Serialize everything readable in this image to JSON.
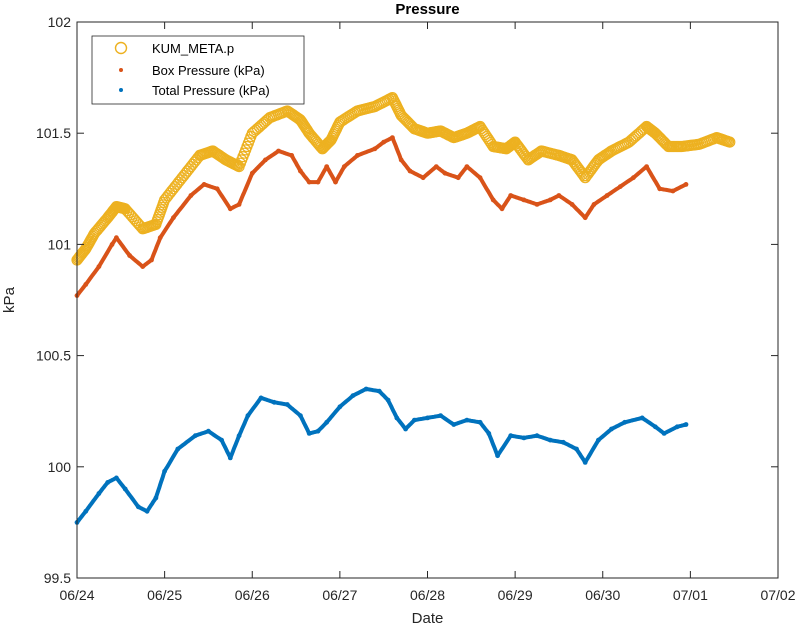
{
  "chart_data": {
    "type": "line",
    "title": "Pressure",
    "xlabel": "Date",
    "ylabel": "kPa",
    "x_tick_labels": [
      "06/24",
      "06/25",
      "06/26",
      "06/27",
      "06/28",
      "06/29",
      "06/30",
      "07/01",
      "07/02"
    ],
    "x_range_days": [
      0,
      8
    ],
    "ylim": [
      99.5,
      102
    ],
    "y_ticks": [
      99.5,
      100,
      100.5,
      101,
      101.5,
      102
    ],
    "y_tick_labels": [
      "99.5",
      "100",
      "100.5",
      "101",
      "101.5",
      "102"
    ],
    "legend_position": "top-left",
    "series": [
      {
        "name": "KUM_META.p",
        "marker": "circle",
        "color": "#EDB120",
        "x_days": [
          0.0,
          0.1,
          0.2,
          0.35,
          0.45,
          0.55,
          0.75,
          0.9,
          1.0,
          1.2,
          1.4,
          1.55,
          1.7,
          1.85,
          2.0,
          2.2,
          2.4,
          2.55,
          2.65,
          2.8,
          2.9,
          3.0,
          3.2,
          3.4,
          3.6,
          3.7,
          3.85,
          4.0,
          4.15,
          4.3,
          4.45,
          4.6,
          4.75,
          4.9,
          5.0,
          5.15,
          5.3,
          5.5,
          5.65,
          5.8,
          5.95,
          6.1,
          6.3,
          6.5,
          6.6,
          6.75,
          6.9,
          7.1,
          7.3,
          7.45
        ],
        "values": [
          100.93,
          100.98,
          101.05,
          101.12,
          101.17,
          101.16,
          101.07,
          101.09,
          101.2,
          101.3,
          101.4,
          101.42,
          101.38,
          101.35,
          101.5,
          101.57,
          101.6,
          101.56,
          101.5,
          101.43,
          101.47,
          101.55,
          101.6,
          101.62,
          101.66,
          101.58,
          101.52,
          101.5,
          101.51,
          101.48,
          101.5,
          101.53,
          101.44,
          101.43,
          101.46,
          101.38,
          101.42,
          101.4,
          101.38,
          101.3,
          101.38,
          101.42,
          101.46,
          101.53,
          101.5,
          101.44,
          101.44,
          101.45,
          101.48,
          101.46
        ]
      },
      {
        "name": "Box Pressure (kPa)",
        "marker": "dot",
        "color": "#D95319",
        "x_days": [
          0.0,
          0.1,
          0.25,
          0.4,
          0.45,
          0.6,
          0.75,
          0.85,
          0.95,
          1.1,
          1.3,
          1.45,
          1.6,
          1.75,
          1.85,
          2.0,
          2.15,
          2.3,
          2.45,
          2.55,
          2.65,
          2.75,
          2.85,
          2.95,
          3.05,
          3.2,
          3.4,
          3.5,
          3.6,
          3.7,
          3.8,
          3.95,
          4.1,
          4.2,
          4.35,
          4.45,
          4.6,
          4.75,
          4.85,
          4.95,
          5.1,
          5.25,
          5.4,
          5.5,
          5.65,
          5.8,
          5.9,
          6.05,
          6.2,
          6.35,
          6.5,
          6.65,
          6.8,
          6.95
        ],
        "values": [
          100.77,
          100.82,
          100.9,
          101.0,
          101.03,
          100.95,
          100.9,
          100.93,
          101.03,
          101.12,
          101.22,
          101.27,
          101.25,
          101.16,
          101.18,
          101.32,
          101.38,
          101.42,
          101.4,
          101.33,
          101.28,
          101.28,
          101.35,
          101.28,
          101.35,
          101.4,
          101.43,
          101.46,
          101.48,
          101.38,
          101.33,
          101.3,
          101.35,
          101.32,
          101.3,
          101.35,
          101.3,
          101.2,
          101.16,
          101.22,
          101.2,
          101.18,
          101.2,
          101.22,
          101.18,
          101.12,
          101.18,
          101.22,
          101.26,
          101.3,
          101.35,
          101.25,
          101.24,
          101.27
        ]
      },
      {
        "name": "Total Pressure (kPa)",
        "marker": "dot",
        "color": "#0072BD",
        "x_days": [
          0.0,
          0.1,
          0.25,
          0.35,
          0.45,
          0.55,
          0.7,
          0.8,
          0.9,
          1.0,
          1.15,
          1.35,
          1.5,
          1.65,
          1.75,
          1.85,
          1.95,
          2.1,
          2.25,
          2.4,
          2.55,
          2.65,
          2.75,
          2.85,
          3.0,
          3.15,
          3.3,
          3.45,
          3.55,
          3.65,
          3.75,
          3.85,
          4.0,
          4.15,
          4.3,
          4.45,
          4.6,
          4.7,
          4.8,
          4.95,
          5.1,
          5.25,
          5.4,
          5.55,
          5.7,
          5.8,
          5.95,
          6.1,
          6.25,
          6.45,
          6.6,
          6.7,
          6.85,
          6.95
        ],
        "values": [
          99.75,
          99.8,
          99.88,
          99.93,
          99.95,
          99.9,
          99.82,
          99.8,
          99.86,
          99.98,
          100.08,
          100.14,
          100.16,
          100.12,
          100.04,
          100.14,
          100.23,
          100.31,
          100.29,
          100.28,
          100.23,
          100.15,
          100.16,
          100.2,
          100.27,
          100.32,
          100.35,
          100.34,
          100.3,
          100.22,
          100.17,
          100.21,
          100.22,
          100.23,
          100.19,
          100.21,
          100.2,
          100.15,
          100.05,
          100.14,
          100.13,
          100.14,
          100.12,
          100.11,
          100.08,
          100.02,
          100.12,
          100.17,
          100.2,
          100.22,
          100.18,
          100.15,
          100.18,
          100.19
        ]
      }
    ]
  }
}
